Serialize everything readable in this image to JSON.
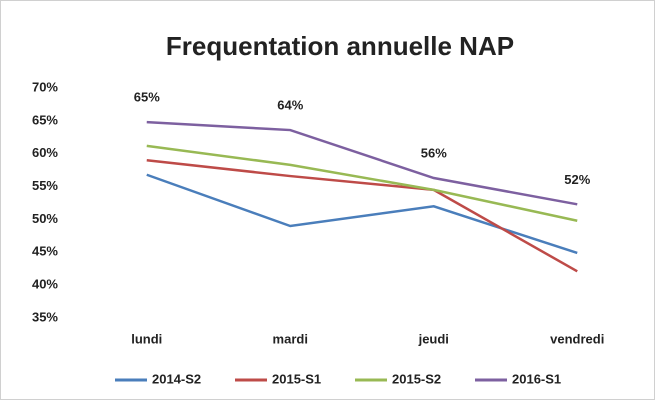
{
  "chart_data": {
    "type": "line",
    "title": "Frequentation annuelle NAP",
    "categories": [
      "lundi",
      "mardi",
      "jeudi",
      "vendredi"
    ],
    "series": [
      {
        "name": "2014-S2",
        "color": "#4a7ebb",
        "values": [
          56.8,
          49,
          52,
          44.9
        ]
      },
      {
        "name": "2015-S1",
        "color": "#be4b48",
        "values": [
          59,
          56.6,
          54.5,
          42.1
        ]
      },
      {
        "name": "2015-S2",
        "color": "#98b954",
        "values": [
          61.2,
          58.3,
          54.5,
          49.8
        ]
      },
      {
        "name": "2016-S1",
        "color": "#7d60a0",
        "values": [
          64.8,
          63.6,
          56.3,
          52.3
        ],
        "value_labels": [
          "65%",
          "64%",
          "56%",
          "52%"
        ]
      }
    ],
    "ylim": [
      35,
      70
    ],
    "yticks": [
      {
        "value": 35,
        "label": "35%"
      },
      {
        "value": 40,
        "label": "40%"
      },
      {
        "value": 45,
        "label": "45%"
      },
      {
        "value": 50,
        "label": "50%"
      },
      {
        "value": 55,
        "label": "55%"
      },
      {
        "value": 60,
        "label": "60%"
      },
      {
        "value": 65,
        "label": "65%"
      },
      {
        "value": 70,
        "label": "70%"
      }
    ],
    "grid": false,
    "legend": "bottom"
  }
}
